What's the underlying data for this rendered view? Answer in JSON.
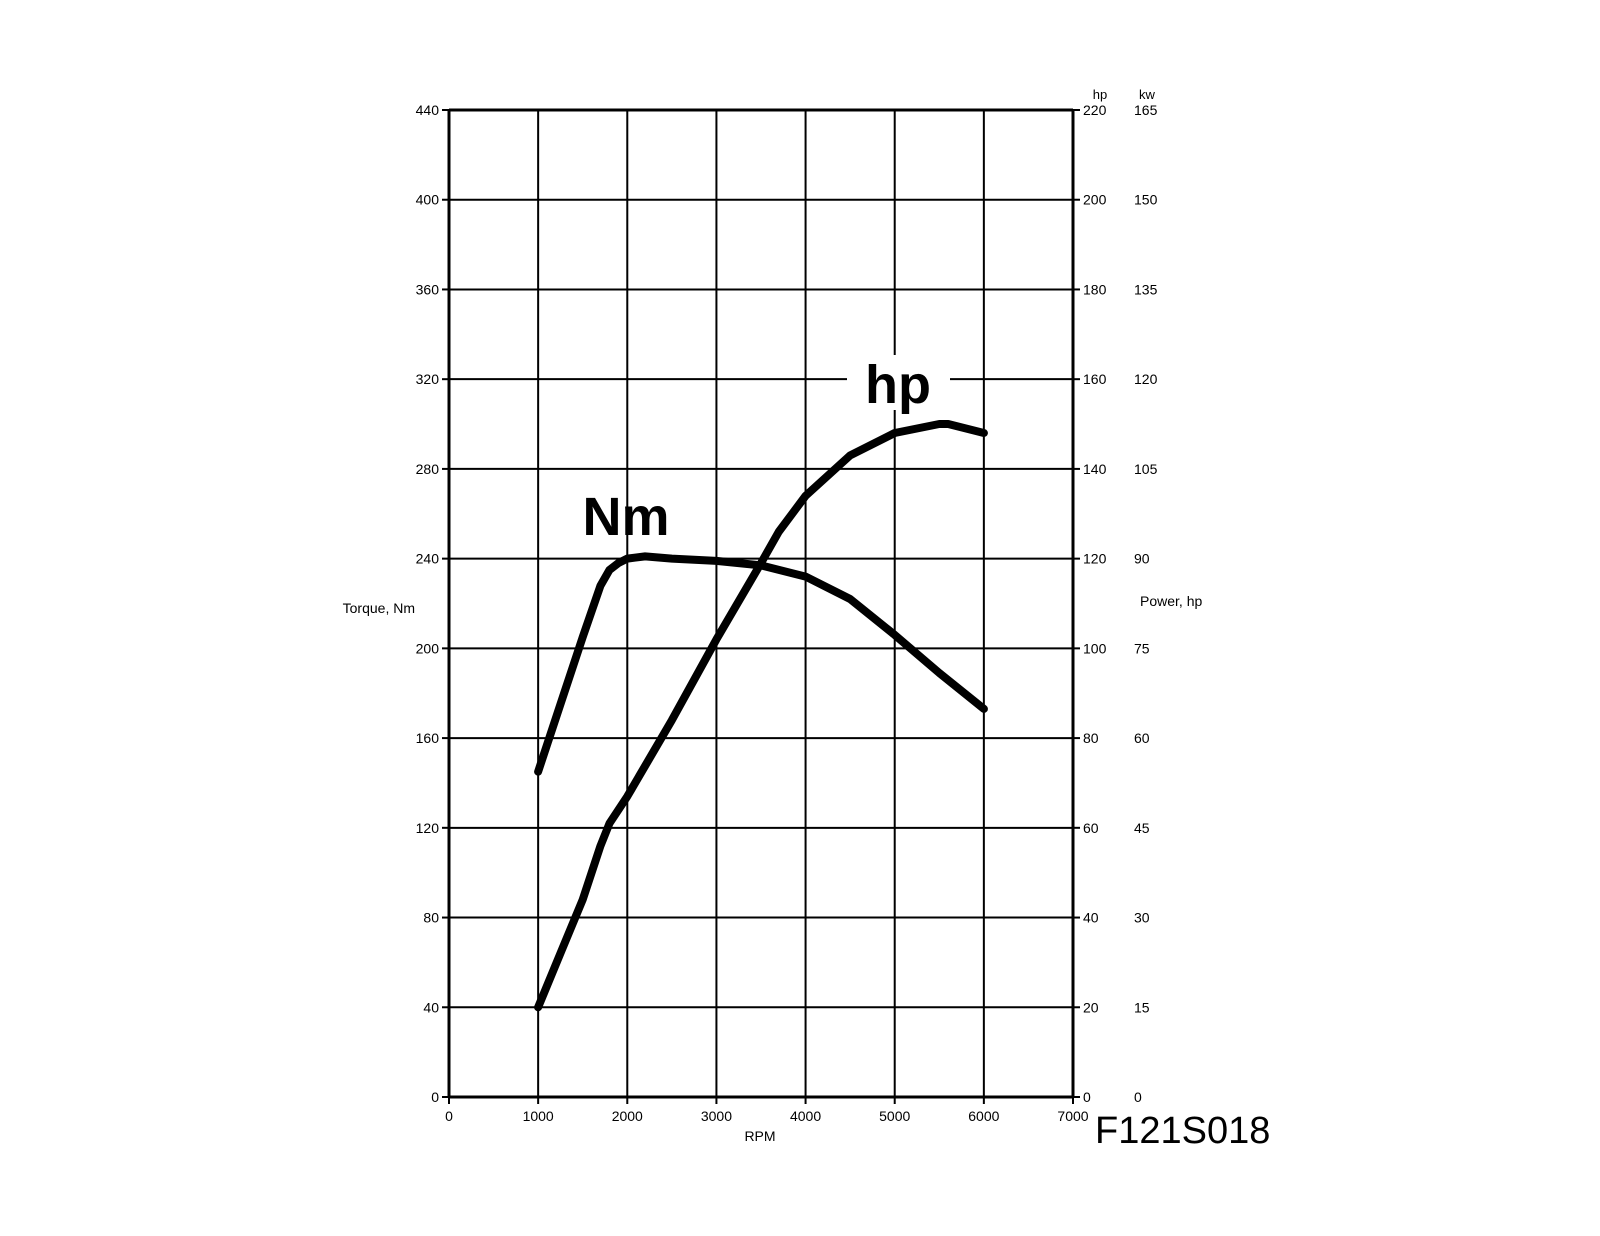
{
  "figure_code": "F121S018",
  "chart_data": {
    "type": "line",
    "title": "",
    "x": {
      "label": "RPM",
      "range": [
        0,
        7000
      ],
      "ticks": [
        "0",
        "1000",
        "2000",
        "3000",
        "4000",
        "5000",
        "6000",
        "7000"
      ]
    },
    "y_left": {
      "label": "Torque, Nm",
      "range": [
        0,
        440
      ],
      "ticks": [
        "0",
        "40",
        "80",
        "120",
        "160",
        "200",
        "240",
        "280",
        "320",
        "360",
        "400",
        "440"
      ]
    },
    "y_right": {
      "label": "Power, hp",
      "unit_hp": "hp",
      "unit_kw": "kw",
      "range": [
        0,
        220
      ],
      "ticks_hp": [
        "0",
        "20",
        "40",
        "60",
        "80",
        "100",
        "120",
        "140",
        "160",
        "180",
        "200",
        "220"
      ],
      "ticks_kw": [
        "0",
        "15",
        "30",
        "45",
        "60",
        "75",
        "90",
        "105",
        "120",
        "135",
        "150",
        "165"
      ]
    },
    "grid": true,
    "series": [
      {
        "name": "Nm",
        "axis": "left",
        "x": [
          1000,
          1250,
          1500,
          1700,
          1800,
          1900,
          2000,
          2200,
          2500,
          3000,
          3500,
          4000,
          4500,
          5000,
          5500,
          6000
        ],
        "values": [
          145,
          175,
          205,
          228,
          235,
          238,
          240,
          241,
          240,
          239,
          237,
          232,
          222,
          206,
          189,
          173
        ]
      },
      {
        "name": "hp",
        "axis": "right",
        "x": [
          1000,
          1250,
          1500,
          1700,
          1800,
          2000,
          2500,
          3000,
          3500,
          3700,
          4000,
          4500,
          5000,
          5500,
          5600,
          6000
        ],
        "values": [
          20,
          32,
          44,
          56,
          61,
          67,
          84,
          102,
          119,
          126,
          134,
          143,
          148,
          150,
          150,
          148
        ]
      }
    ]
  }
}
